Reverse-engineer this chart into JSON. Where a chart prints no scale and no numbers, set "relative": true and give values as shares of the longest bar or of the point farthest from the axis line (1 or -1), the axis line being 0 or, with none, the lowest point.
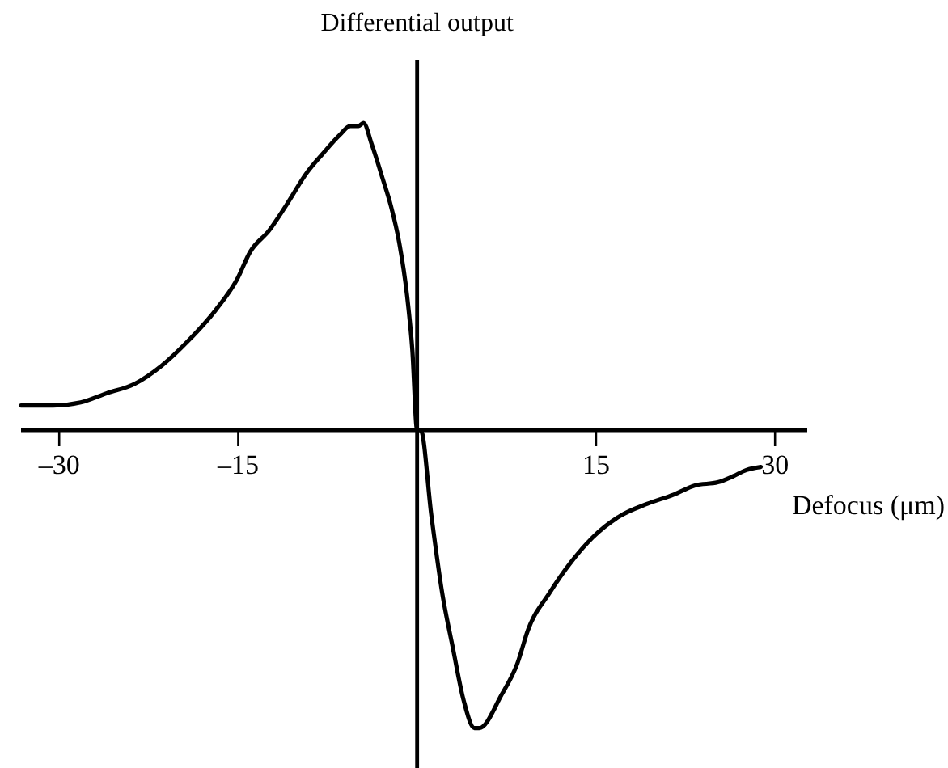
{
  "chart_data": {
    "type": "line",
    "ylabel": "Differential output",
    "xlabel": "Defocus (μm)",
    "relative": true,
    "tick_labels": "x",
    "xlim": [
      -33.2,
      32.7
    ],
    "xticks": [
      {
        "value": -30,
        "label": "–30"
      },
      {
        "value": -15,
        "label": "–15"
      },
      15,
      30
    ],
    "series": [
      {
        "color": "#000000",
        "x": [
          -33.2,
          -30.5,
          -28.2,
          -26.0,
          -23.7,
          -21.4,
          -19.2,
          -16.9,
          -15.1,
          -14.0,
          -12.4,
          -11.0,
          -9.2,
          -7.9,
          -6.5,
          -5.6,
          -4.9,
          -4.5,
          -3.8,
          -2.9,
          -2.2,
          -1.5,
          -0.85,
          -0.4,
          0,
          0.3,
          1.2,
          2.1,
          3.0,
          3.9,
          4.8,
          5.2,
          7.1,
          8.4,
          9.3,
          11.1,
          12.9,
          14.7,
          17.0,
          19.3,
          21.5,
          23.3,
          25.2,
          26.5,
          27.6,
          28.8
        ],
        "values": [
          0.08,
          0.08,
          0.09,
          0.12,
          0.15,
          0.21,
          0.29,
          0.39,
          0.49,
          0.58,
          0.65,
          0.73,
          0.84,
          0.9,
          0.96,
          0.99,
          0.99,
          1,
          0.93,
          0.82,
          0.73,
          0.61,
          0.44,
          0.26,
          0,
          0,
          -0.28,
          -0.53,
          -0.71,
          -0.88,
          -0.97,
          -0.97,
          -0.86,
          -0.76,
          -0.65,
          -0.53,
          -0.43,
          -0.35,
          -0.28,
          -0.24,
          -0.21,
          -0.18,
          -0.17,
          -0.15,
          -0.13,
          -0.12
        ]
      }
    ]
  }
}
